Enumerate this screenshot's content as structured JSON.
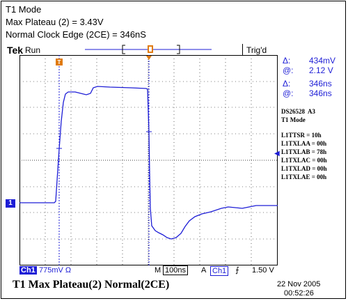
{
  "header": {
    "line1": "T1 Mode",
    "line2": "Max Plateau (2) = 3.43V",
    "line3": "Normal Clock Edge (2CE) = 346nS"
  },
  "scope": {
    "brand": "Tek",
    "status": "Run",
    "trigger_status": "Trig'd",
    "trigger_marker": "T",
    "channel_marker": "1"
  },
  "readouts": {
    "delta_v_label": "Δ:",
    "delta_v": "434mV",
    "at_v_label": "@:",
    "at_v": "2.12 V",
    "delta_t_label": "Δ:",
    "delta_t": "346ns",
    "at_t_label": "@:",
    "at_t": "346ns"
  },
  "side_info": {
    "device": "DS26528  A3",
    "mode": "T1 Mode",
    "registers": [
      "L1TTSR = 10h",
      "L1TXLAA = 00h",
      "L1TXLAB = 78h",
      "L1TXLAC = 00h",
      "L1TXLAD = 00h",
      "L1TXLAE = 00h"
    ]
  },
  "bottom": {
    "ch_label": "Ch1",
    "ch_scale": "775mV Ω",
    "timebase_label": "M",
    "timebase": "100ns",
    "trigger_mode": "A",
    "trigger_source": "Ch1",
    "trigger_slope": "⨍",
    "trigger_level": "1.50 V"
  },
  "caption": "T1 Max Plateau(2)  Normal(2CE)",
  "date": "22 Nov 2005",
  "time": "00:52:26",
  "colors": {
    "trace": "#1d1dd6",
    "cursor": "#1d1dd6",
    "trigger_marker": "#e07a10",
    "grid": "#000000"
  }
}
